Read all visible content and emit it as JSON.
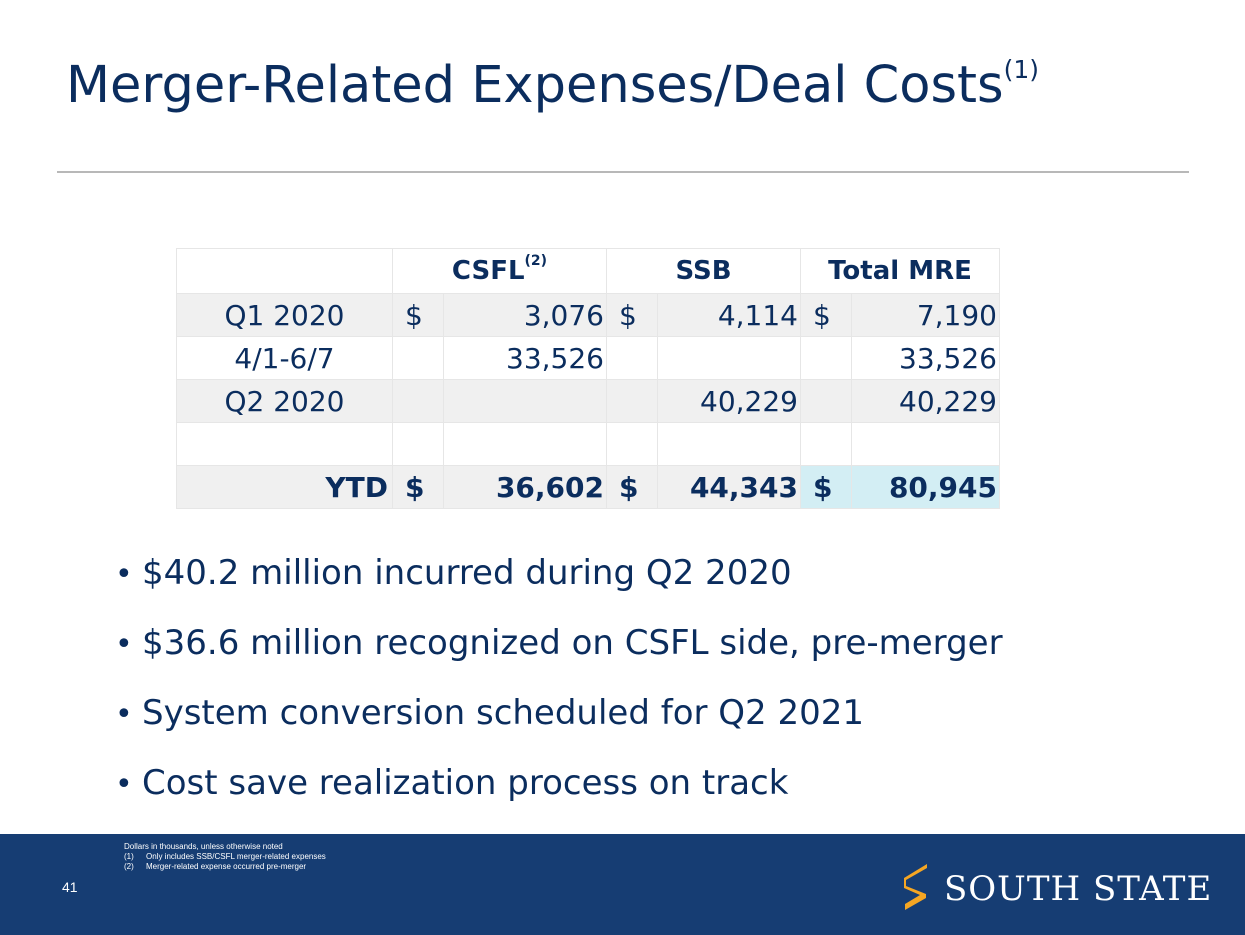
{
  "title": {
    "text": "Merger-Related Expenses/Deal Costs",
    "sup": "(1)"
  },
  "table": {
    "headers": {
      "col1": "CSFL",
      "col1_sup": "(2)",
      "col2": "SSB",
      "col3": "Total MRE"
    },
    "rows": [
      {
        "label": "Q1 2020",
        "csfl_sign": "$",
        "csfl": "3,076",
        "ssb_sign": "$",
        "ssb": "4,114",
        "total_sign": "$",
        "total": "7,190"
      },
      {
        "label": "4/1-6/7",
        "csfl_sign": "",
        "csfl": "33,526",
        "ssb_sign": "",
        "ssb": "",
        "total_sign": "",
        "total": "33,526"
      },
      {
        "label": "Q2 2020",
        "csfl_sign": "",
        "csfl": "",
        "ssb_sign": "",
        "ssb": "40,229",
        "total_sign": "",
        "total": "40,229"
      },
      {
        "label": "",
        "csfl_sign": "",
        "csfl": "",
        "ssb_sign": "",
        "ssb": "",
        "total_sign": "",
        "total": ""
      },
      {
        "label": "YTD",
        "csfl_sign": "$",
        "csfl": "36,602",
        "ssb_sign": "$",
        "ssb": "44,343",
        "total_sign": "$",
        "total": "80,945"
      }
    ]
  },
  "bullets": [
    {
      "marker": "•",
      "text": "$40.2 million incurred during Q2 2020"
    },
    {
      "marker": "•",
      "text": "$36.6 million recognized on CSFL side, pre-merger"
    },
    {
      "marker": "•",
      "text": "System conversion scheduled for Q2 2021"
    },
    {
      "marker": "•",
      "text": "Cost save realization process on track"
    }
  ],
  "footer": {
    "page_number": "41",
    "notes": {
      "line1": "Dollars in thousands, unless otherwise noted",
      "n1": "(1)",
      "line2": "Only includes SSB/CSFL merger-related expenses",
      "n2": "(2)",
      "line3": "Merger-related expense occurred pre-merger"
    },
    "logo_text": "SOUTH STATE",
    "logo_icon": "south-state-s-logo-icon"
  },
  "colors": {
    "title": "#0b2d5e",
    "footer_bg": "#163d73",
    "logo_gold": "#f5a623",
    "highlight": "#d3eef4"
  }
}
